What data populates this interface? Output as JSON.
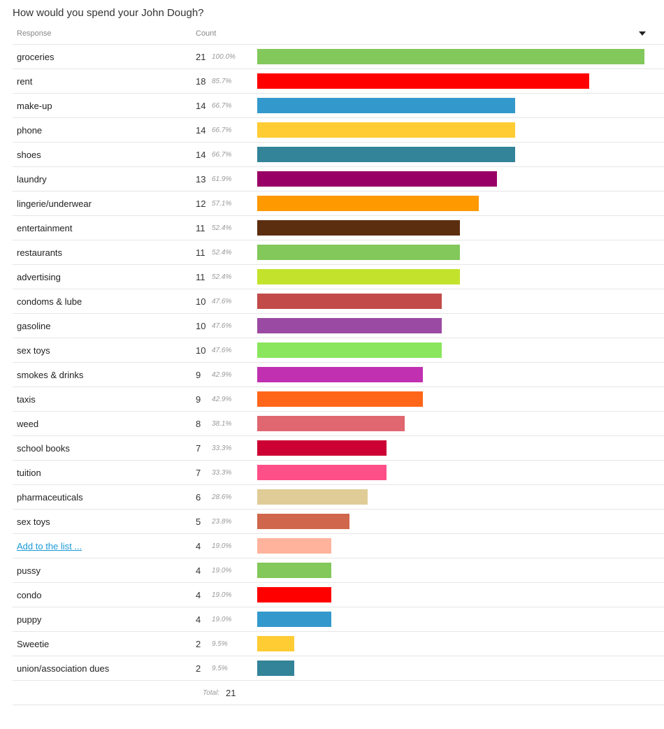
{
  "title": "How would you spend your John Dough?",
  "header": {
    "response": "Response",
    "count": "Count"
  },
  "chart_data": {
    "type": "bar",
    "orientation": "horizontal",
    "title": "How would you spend your John Dough?",
    "categories": [
      "groceries",
      "rent",
      "make-up",
      "phone",
      "shoes",
      "laundry",
      "lingerie/underwear",
      "entertainment",
      "restaurants",
      "advertising",
      "condoms & lube",
      "gasoline",
      "sex toys",
      "smokes & drinks",
      "taxis",
      "weed",
      "school books",
      "tuition",
      "pharmaceuticals",
      "sex toys",
      "Add to the list ...",
      "pussy",
      "condo",
      "puppy",
      "Sweetie",
      "union/association dues"
    ],
    "values": [
      21,
      18,
      14,
      14,
      14,
      13,
      12,
      11,
      11,
      11,
      10,
      10,
      10,
      9,
      9,
      8,
      7,
      7,
      6,
      5,
      4,
      4,
      4,
      4,
      2,
      2
    ],
    "percents": [
      "100.0%",
      "85.7%",
      "66.7%",
      "66.7%",
      "66.7%",
      "61.9%",
      "57.1%",
      "52.4%",
      "52.4%",
      "52.4%",
      "47.6%",
      "47.6%",
      "47.6%",
      "42.9%",
      "42.9%",
      "38.1%",
      "33.3%",
      "33.3%",
      "28.6%",
      "23.8%",
      "19.0%",
      "19.0%",
      "19.0%",
      "19.0%",
      "9.5%",
      "9.5%"
    ],
    "colors": [
      "#82c85a",
      "#ff0000",
      "#3399cc",
      "#ffcc33",
      "#338399",
      "#990066",
      "#ff9900",
      "#5c2e10",
      "#82c85a",
      "#c2e22b",
      "#c24a49",
      "#9b4aa3",
      "#8ae65c",
      "#c030b0",
      "#ff6619",
      "#e06670",
      "#cc0033",
      "#ff4f88",
      "#e0cc96",
      "#d0674c",
      "#ffb39c",
      "#82c85a",
      "#ff0000",
      "#3399cc",
      "#ffcc33",
      "#338399"
    ],
    "links": [
      false,
      false,
      false,
      false,
      false,
      false,
      false,
      false,
      false,
      false,
      false,
      false,
      false,
      false,
      false,
      false,
      false,
      false,
      false,
      false,
      true,
      false,
      false,
      false,
      false,
      false
    ],
    "xlim": [
      0,
      21
    ]
  },
  "total": {
    "label": "Total:",
    "value": "21"
  }
}
